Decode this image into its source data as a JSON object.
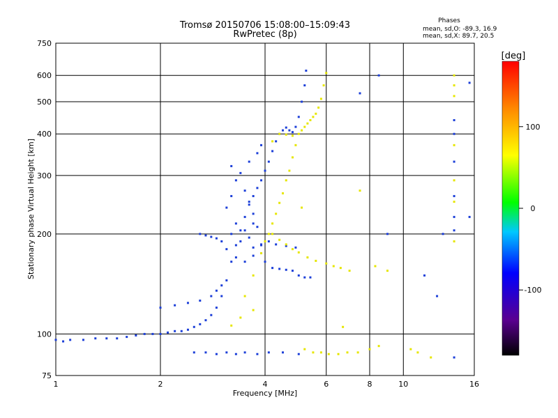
{
  "chart_data": {
    "type": "scatter",
    "title": "Tromsø 20150706 15:08:00–15:09:43",
    "subtitle": "RwPretec (8p)",
    "xlabel": "Frequency [MHz]",
    "ylabel": "Stationary phase Virtual Height [km]",
    "x_scale": "log",
    "y_scale": "log",
    "xlim": [
      1,
      16
    ],
    "ylim": [
      75,
      750
    ],
    "x_ticks": [
      1,
      2,
      4,
      6,
      8,
      10,
      16
    ],
    "x_tick_labels": [
      "1",
      "2",
      "4",
      "6",
      "8",
      "10",
      "16"
    ],
    "y_ticks": [
      75,
      100,
      200,
      300,
      400,
      500,
      600,
      750
    ],
    "y_tick_labels": [
      "75",
      "100",
      "200",
      "300",
      "400",
      "500",
      "600",
      "750"
    ],
    "x_gridlines": [
      2,
      4,
      6,
      8,
      10
    ],
    "y_gridlines": [
      100,
      200,
      300,
      400,
      500,
      600
    ],
    "legend": {
      "title": "Phases",
      "lines": [
        "mean, sd,O: -89.3, 16.9",
        "mean, sd,X: 89.7, 20.5"
      ],
      "placement": "top-right"
    },
    "colorbar": {
      "label": "[deg]",
      "range": [
        -180,
        180
      ],
      "ticks": [
        100,
        0,
        -100
      ],
      "tick_labels": [
        "100",
        "0",
        "-100"
      ],
      "colors": [
        "#000000",
        "#5a0090",
        "#0000ff",
        "#00c8ff",
        "#00ff00",
        "#ffff00",
        "#ff8800",
        "#ff0000"
      ]
    },
    "series": [
      {
        "name": "O",
        "color": "#1c3fd8",
        "points": [
          [
            1.0,
            96
          ],
          [
            1.05,
            95
          ],
          [
            1.1,
            96
          ],
          [
            1.2,
            96
          ],
          [
            1.3,
            97
          ],
          [
            1.4,
            97
          ],
          [
            1.5,
            97
          ],
          [
            1.6,
            98
          ],
          [
            1.7,
            99
          ],
          [
            1.8,
            100
          ],
          [
            1.9,
            100
          ],
          [
            2.0,
            100
          ],
          [
            2.1,
            101
          ],
          [
            2.2,
            102
          ],
          [
            2.3,
            102
          ],
          [
            2.4,
            103
          ],
          [
            2.5,
            105
          ],
          [
            2.6,
            107
          ],
          [
            2.7,
            110
          ],
          [
            2.8,
            114
          ],
          [
            2.9,
            120
          ],
          [
            3.0,
            130
          ],
          [
            3.1,
            145
          ],
          [
            3.2,
            165
          ],
          [
            3.3,
            185
          ],
          [
            3.4,
            205
          ],
          [
            3.5,
            225
          ],
          [
            3.6,
            245
          ],
          [
            3.7,
            260
          ],
          [
            3.8,
            275
          ],
          [
            3.9,
            290
          ],
          [
            4.0,
            310
          ],
          [
            4.1,
            330
          ],
          [
            4.2,
            355
          ],
          [
            4.3,
            380
          ],
          [
            4.4,
            400
          ],
          [
            4.5,
            410
          ],
          [
            4.6,
            418
          ],
          [
            4.7,
            410
          ],
          [
            4.8,
            405
          ],
          [
            4.9,
            420
          ],
          [
            5.0,
            450
          ],
          [
            5.1,
            500
          ],
          [
            5.2,
            560
          ],
          [
            5.25,
            620
          ],
          [
            3.1,
            180
          ],
          [
            3.2,
            200
          ],
          [
            3.3,
            215
          ],
          [
            3.4,
            190
          ],
          [
            3.5,
            205
          ],
          [
            3.6,
            195
          ],
          [
            3.7,
            230
          ],
          [
            3.8,
            210
          ],
          [
            3.9,
            185
          ],
          [
            3.1,
            240
          ],
          [
            3.2,
            260
          ],
          [
            3.3,
            290
          ],
          [
            3.4,
            305
          ],
          [
            3.5,
            270
          ],
          [
            3.6,
            250
          ],
          [
            3.7,
            215
          ],
          [
            3.3,
            170
          ],
          [
            3.5,
            165
          ],
          [
            3.7,
            172
          ],
          [
            3.9,
            175
          ],
          [
            4.0,
            165
          ],
          [
            4.2,
            158
          ],
          [
            4.4,
            157
          ],
          [
            4.6,
            156
          ],
          [
            4.8,
            155
          ],
          [
            5.0,
            150
          ],
          [
            5.2,
            148
          ],
          [
            5.4,
            148
          ],
          [
            3.7,
            182
          ],
          [
            3.9,
            186
          ],
          [
            4.1,
            190
          ],
          [
            4.3,
            186
          ],
          [
            4.6,
            184
          ],
          [
            4.9,
            182
          ],
          [
            2.6,
            200
          ],
          [
            2.7,
            198
          ],
          [
            2.8,
            196
          ],
          [
            2.9,
            194
          ],
          [
            3.0,
            190
          ],
          [
            2.0,
            120
          ],
          [
            2.2,
            122
          ],
          [
            2.4,
            124
          ],
          [
            2.6,
            126
          ],
          [
            2.8,
            130
          ],
          [
            2.9,
            135
          ],
          [
            3.0,
            140
          ],
          [
            2.5,
            88
          ],
          [
            2.7,
            88
          ],
          [
            2.9,
            87
          ],
          [
            3.1,
            88
          ],
          [
            3.3,
            87
          ],
          [
            3.5,
            88
          ],
          [
            3.8,
            87
          ],
          [
            4.1,
            88
          ],
          [
            4.5,
            88
          ],
          [
            5.0,
            87
          ],
          [
            3.2,
            320
          ],
          [
            3.6,
            330
          ],
          [
            3.8,
            350
          ],
          [
            3.9,
            370
          ],
          [
            7.5,
            530
          ],
          [
            8.5,
            600
          ],
          [
            9.0,
            200
          ],
          [
            13.0,
            200
          ],
          [
            14.0,
            400
          ],
          [
            14.0,
            440
          ],
          [
            14.0,
            330
          ],
          [
            14.0,
            260
          ],
          [
            14.0,
            225
          ],
          [
            14.0,
            205
          ],
          [
            15.5,
            570
          ],
          [
            15.5,
            225
          ],
          [
            14.0,
            85
          ],
          [
            11.5,
            150
          ],
          [
            12.5,
            130
          ]
        ]
      },
      {
        "name": "X",
        "color": "#e6e600",
        "points": [
          [
            3.5,
            130
          ],
          [
            3.7,
            150
          ],
          [
            3.9,
            175
          ],
          [
            4.0,
            190
          ],
          [
            4.1,
            200
          ],
          [
            4.2,
            215
          ],
          [
            4.3,
            230
          ],
          [
            4.4,
            248
          ],
          [
            4.5,
            265
          ],
          [
            4.6,
            290
          ],
          [
            4.7,
            310
          ],
          [
            4.8,
            340
          ],
          [
            4.9,
            370
          ],
          [
            5.0,
            400
          ],
          [
            5.1,
            410
          ],
          [
            5.2,
            420
          ],
          [
            5.3,
            430
          ],
          [
            5.4,
            440
          ],
          [
            5.5,
            450
          ],
          [
            5.6,
            460
          ],
          [
            5.7,
            480
          ],
          [
            5.8,
            510
          ],
          [
            5.9,
            560
          ],
          [
            6.0,
            610
          ],
          [
            4.2,
            200
          ],
          [
            4.4,
            192
          ],
          [
            4.6,
            186
          ],
          [
            4.8,
            180
          ],
          [
            5.0,
            176
          ],
          [
            5.3,
            170
          ],
          [
            5.6,
            166
          ],
          [
            6.0,
            163
          ],
          [
            6.3,
            160
          ],
          [
            6.6,
            158
          ],
          [
            7.0,
            155
          ],
          [
            4.2,
            380
          ],
          [
            4.4,
            400
          ],
          [
            4.6,
            398
          ],
          [
            4.8,
            395
          ],
          [
            5.2,
            90
          ],
          [
            5.5,
            88
          ],
          [
            5.8,
            88
          ],
          [
            6.1,
            87
          ],
          [
            6.5,
            87
          ],
          [
            6.9,
            88
          ],
          [
            7.4,
            88
          ],
          [
            8.0,
            90
          ],
          [
            8.5,
            92
          ],
          [
            3.2,
            106
          ],
          [
            3.4,
            112
          ],
          [
            3.7,
            118
          ],
          [
            5.1,
            240
          ],
          [
            6.7,
            105
          ],
          [
            7.5,
            270
          ],
          [
            8.3,
            160
          ],
          [
            9.0,
            155
          ],
          [
            10.5,
            90
          ],
          [
            11.0,
            88
          ],
          [
            12.0,
            85
          ],
          [
            14.0,
            600
          ],
          [
            14.0,
            560
          ],
          [
            14.0,
            520
          ],
          [
            14.0,
            370
          ],
          [
            14.0,
            290
          ],
          [
            14.0,
            250
          ],
          [
            14.0,
            190
          ]
        ]
      }
    ]
  }
}
